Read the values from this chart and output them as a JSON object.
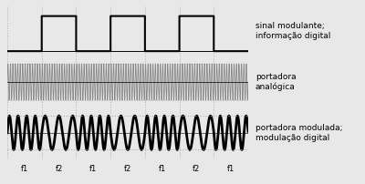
{
  "bg_color": "#e8e8e8",
  "line_color_thin": "#000000",
  "line_color_carrier": "#888888",
  "line_color_thick": "#000000",
  "grid_color": "#aaaaaa",
  "text_color": "#000000",
  "label1": "sinal modulante;\ninformação digital",
  "label2": "portadora\nanalógica",
  "label3": "portadora modulada;\nmodulação digital",
  "freq_labels": [
    "f1",
    "f2",
    "f1",
    "f2",
    "f1",
    "f2",
    "f1"
  ],
  "f1": 4.0,
  "f2": 2.5,
  "carrier_freq": 14.0,
  "duration": 7.0,
  "segment_duration": 1.0,
  "square_pattern": [
    0,
    1,
    0,
    1,
    0,
    1,
    0
  ],
  "font_size_label": 6.5,
  "font_size_freq": 6.0,
  "lw_square": 1.5,
  "lw_carrier": 0.6,
  "lw_fsk": 2.0
}
